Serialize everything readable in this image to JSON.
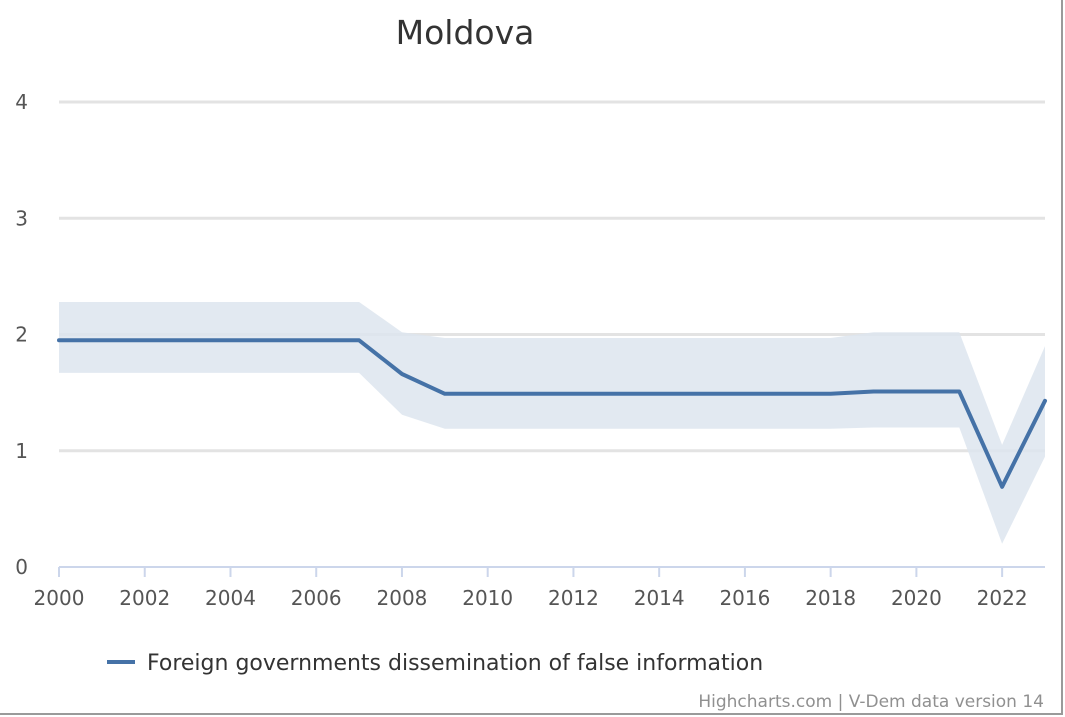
{
  "chart_data": {
    "type": "line",
    "title": "Moldova",
    "xlabel": "",
    "ylabel": "",
    "x": [
      2000,
      2001,
      2002,
      2003,
      2004,
      2005,
      2006,
      2007,
      2008,
      2009,
      2010,
      2011,
      2012,
      2013,
      2014,
      2015,
      2016,
      2017,
      2018,
      2019,
      2020,
      2021,
      2022,
      2023
    ],
    "xlim": [
      2000,
      2023
    ],
    "ylim": [
      0,
      4
    ],
    "x_ticks": [
      "2000",
      "2002",
      "2004",
      "2006",
      "2008",
      "2010",
      "2012",
      "2014",
      "2016",
      "2018",
      "2020",
      "2022"
    ],
    "y_ticks": [
      "0",
      "1",
      "2",
      "3",
      "4"
    ],
    "grid": true,
    "legend_position": "bottom-center",
    "series": [
      {
        "name": "Foreign governments dissemination of false information",
        "color": "#4572a7",
        "values": [
          1.95,
          1.95,
          1.95,
          1.95,
          1.95,
          1.95,
          1.95,
          1.95,
          1.66,
          1.49,
          1.49,
          1.49,
          1.49,
          1.49,
          1.49,
          1.49,
          1.49,
          1.49,
          1.49,
          1.51,
          1.51,
          1.51,
          0.69,
          1.43
        ],
        "band_upper": [
          2.28,
          2.28,
          2.28,
          2.28,
          2.28,
          2.28,
          2.28,
          2.28,
          2.02,
          1.97,
          1.97,
          1.97,
          1.97,
          1.97,
          1.97,
          1.97,
          1.97,
          1.97,
          1.97,
          2.02,
          2.02,
          2.02,
          1.05,
          1.9
        ],
        "band_lower": [
          1.67,
          1.67,
          1.67,
          1.67,
          1.67,
          1.67,
          1.67,
          1.67,
          1.31,
          1.19,
          1.19,
          1.19,
          1.19,
          1.19,
          1.19,
          1.19,
          1.19,
          1.19,
          1.19,
          1.2,
          1.2,
          1.2,
          0.2,
          0.95
        ],
        "band_color": "#dde5ef"
      }
    ]
  },
  "credits": "Highcharts.com | V-Dem data version 14"
}
